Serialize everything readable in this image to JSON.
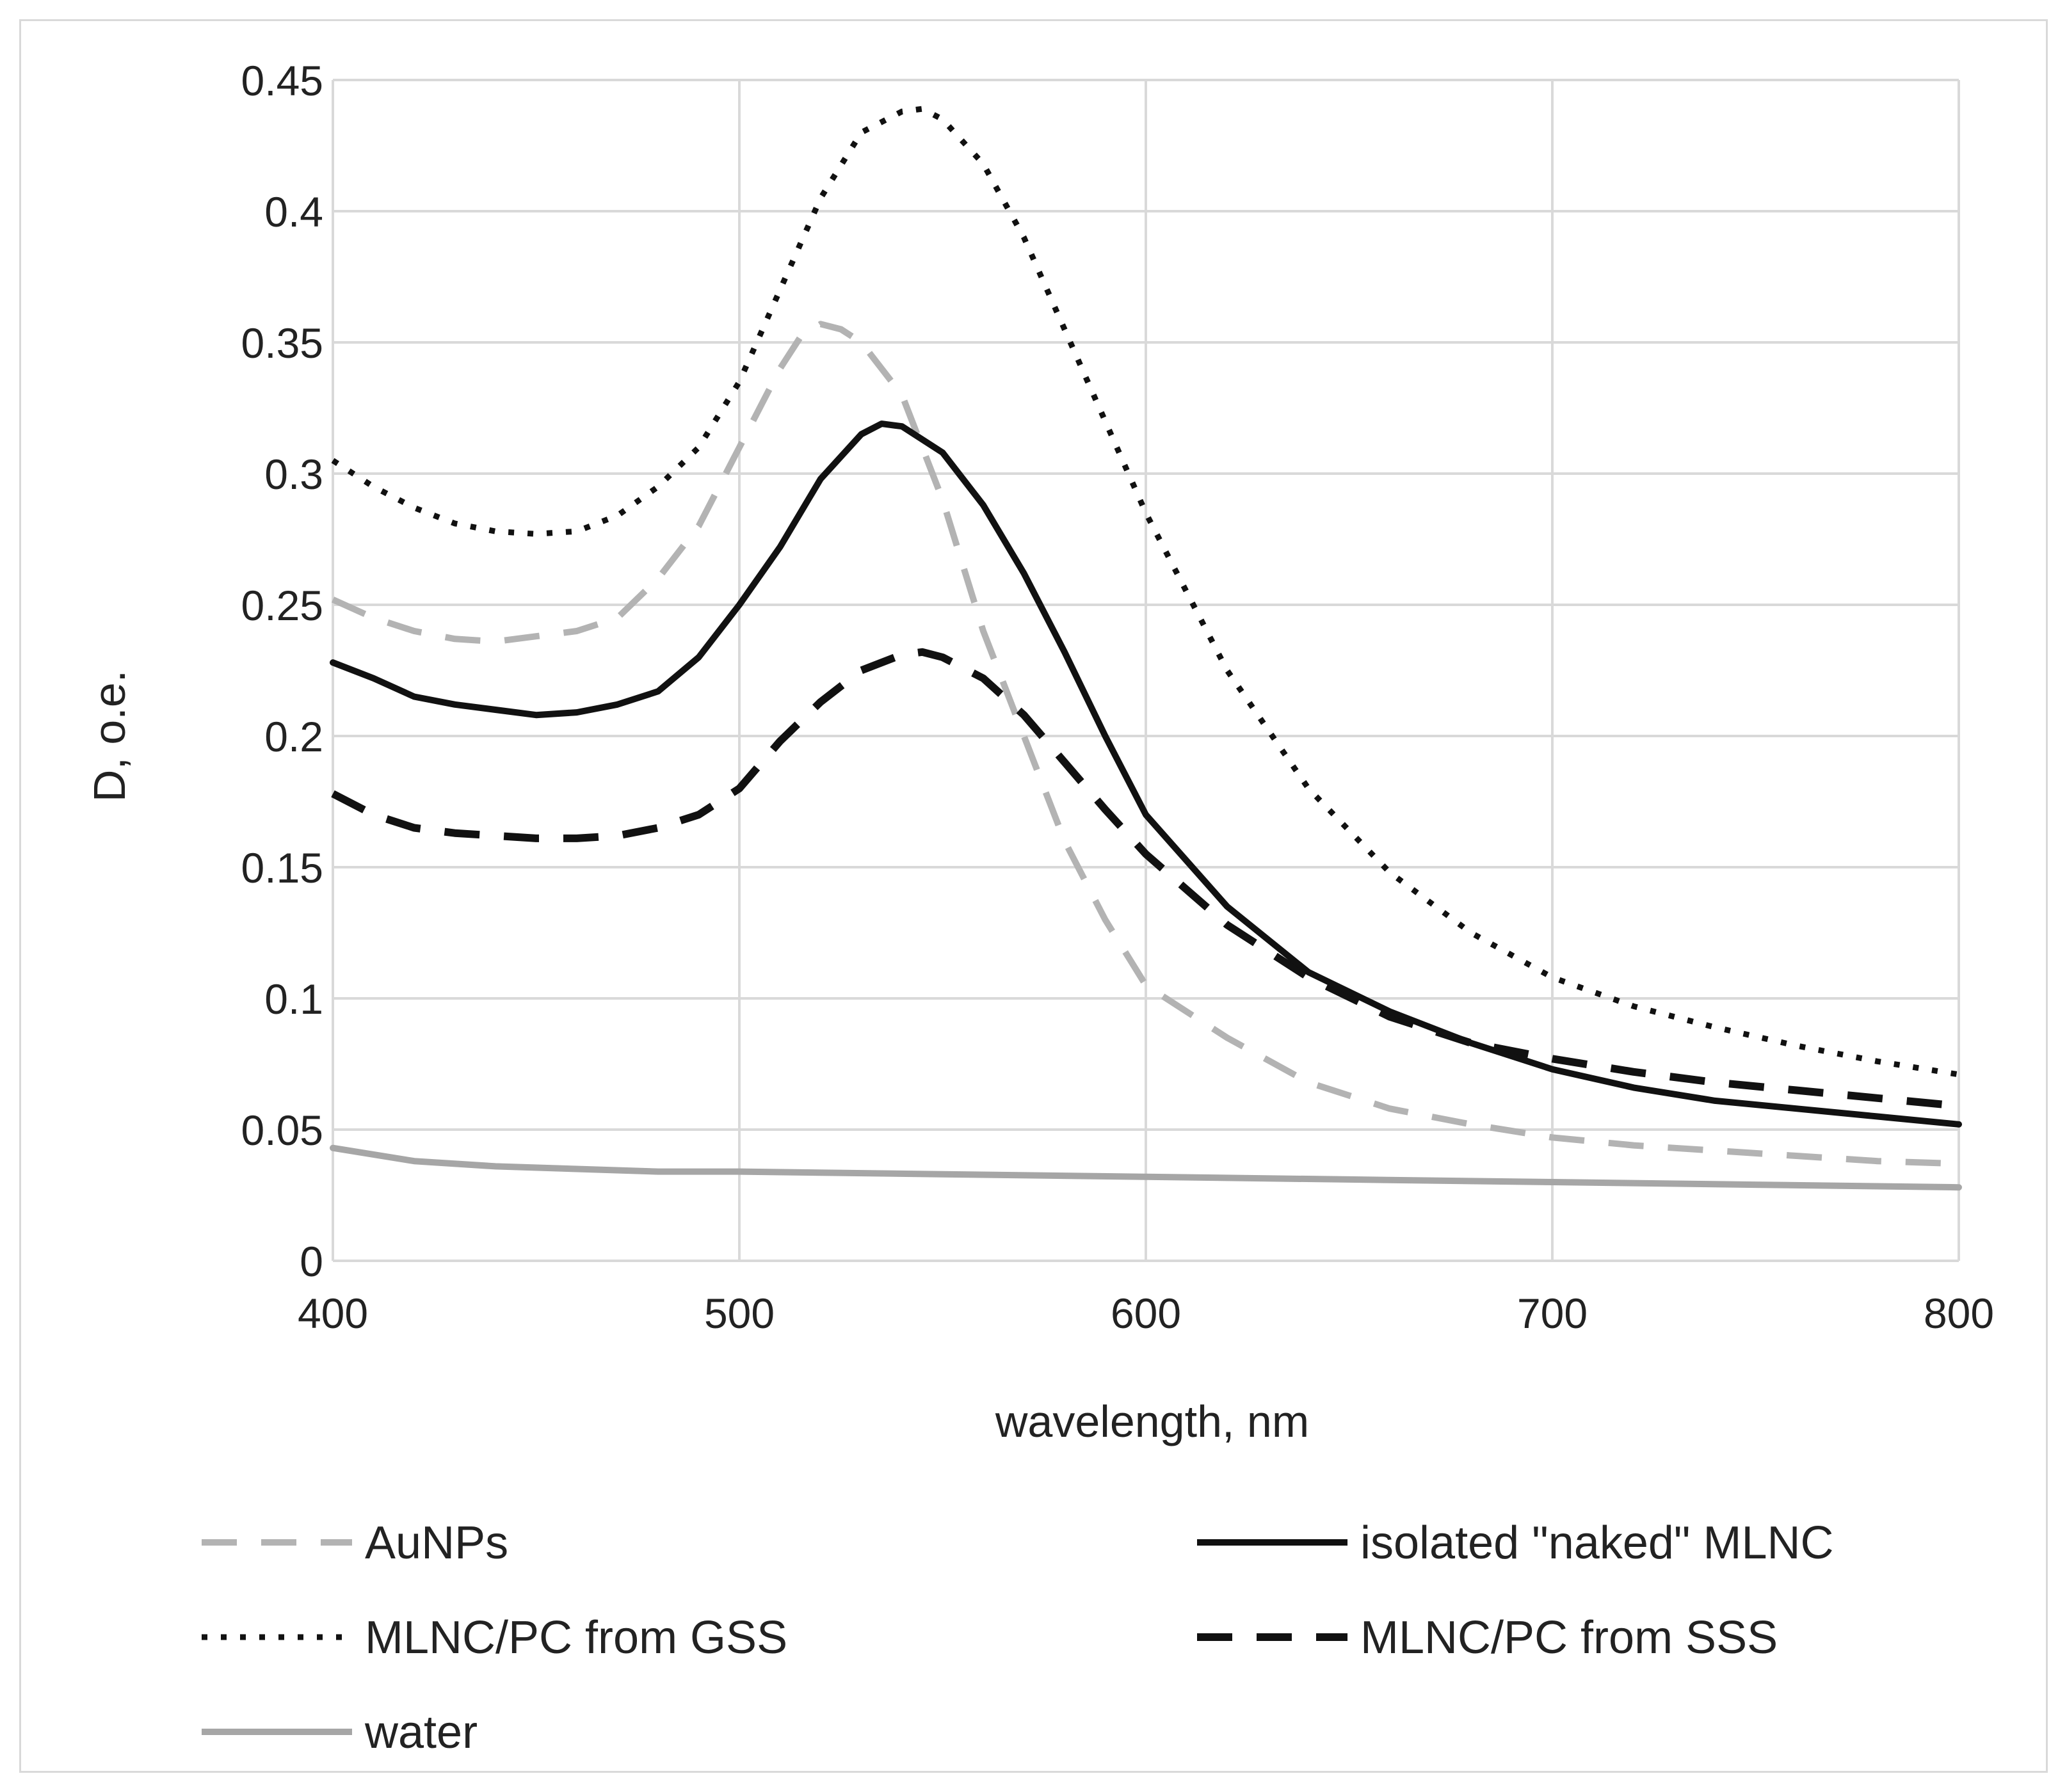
{
  "chart_data": {
    "type": "line",
    "title": "",
    "xlabel": "wavelength, nm",
    "ylabel": "D, o.e.",
    "xlim": [
      400,
      800
    ],
    "ylim": [
      0,
      0.45
    ],
    "xticks": [
      400,
      500,
      600,
      700,
      800
    ],
    "xtick_labels": [
      "400",
      "500",
      "600",
      "700",
      "800"
    ],
    "yticks": [
      0,
      0.05,
      0.1,
      0.15,
      0.2,
      0.25,
      0.3,
      0.35,
      0.4,
      0.45
    ],
    "ytick_labels": [
      "0",
      "0.05",
      "0.1",
      "0.15",
      "0.2",
      "0.25",
      "0.3",
      "0.35",
      "0.4",
      "0.45"
    ],
    "grid": true,
    "legend_position": "bottom",
    "series": [
      {
        "name": "AuNPs",
        "style": "gray-dashed",
        "color": "#b3b3b3",
        "x": [
          400,
          410,
          420,
          430,
          440,
          450,
          460,
          470,
          480,
          490,
          500,
          510,
          515,
          520,
          525,
          530,
          540,
          550,
          560,
          570,
          580,
          590,
          600,
          620,
          640,
          660,
          680,
          700,
          720,
          740,
          760,
          780,
          800
        ],
        "y": [
          0.252,
          0.245,
          0.24,
          0.237,
          0.236,
          0.238,
          0.24,
          0.245,
          0.26,
          0.28,
          0.31,
          0.34,
          0.352,
          0.357,
          0.355,
          0.35,
          0.33,
          0.29,
          0.24,
          0.2,
          0.16,
          0.13,
          0.105,
          0.085,
          0.068,
          0.058,
          0.052,
          0.047,
          0.044,
          0.042,
          0.04,
          0.038,
          0.037
        ]
      },
      {
        "name": "isolated \"naked\" MLNC",
        "style": "black-solid",
        "color": "#111111",
        "x": [
          400,
          410,
          420,
          430,
          440,
          450,
          460,
          470,
          480,
          490,
          500,
          510,
          520,
          530,
          535,
          540,
          550,
          560,
          570,
          580,
          590,
          600,
          620,
          640,
          660,
          680,
          700,
          720,
          740,
          760,
          780,
          800
        ],
        "y": [
          0.228,
          0.222,
          0.215,
          0.212,
          0.21,
          0.208,
          0.209,
          0.212,
          0.217,
          0.23,
          0.25,
          0.272,
          0.298,
          0.315,
          0.319,
          0.318,
          0.308,
          0.288,
          0.262,
          0.232,
          0.2,
          0.17,
          0.135,
          0.11,
          0.095,
          0.083,
          0.073,
          0.066,
          0.061,
          0.058,
          0.055,
          0.052
        ]
      },
      {
        "name": "MLNC/PC from GSS",
        "style": "black-dotted",
        "color": "#111111",
        "x": [
          400,
          410,
          420,
          430,
          440,
          450,
          460,
          470,
          480,
          490,
          500,
          510,
          520,
          530,
          540,
          545,
          550,
          560,
          570,
          580,
          590,
          600,
          620,
          640,
          660,
          680,
          700,
          720,
          740,
          760,
          780,
          800
        ],
        "y": [
          0.305,
          0.295,
          0.287,
          0.281,
          0.278,
          0.277,
          0.278,
          0.284,
          0.295,
          0.31,
          0.335,
          0.37,
          0.405,
          0.43,
          0.438,
          0.439,
          0.435,
          0.418,
          0.39,
          0.355,
          0.32,
          0.285,
          0.225,
          0.18,
          0.148,
          0.125,
          0.108,
          0.097,
          0.089,
          0.082,
          0.076,
          0.071
        ]
      },
      {
        "name": "MLNC/PC from SSS",
        "style": "black-dashed",
        "color": "#111111",
        "x": [
          400,
          410,
          420,
          430,
          440,
          450,
          460,
          470,
          480,
          490,
          500,
          510,
          520,
          530,
          540,
          545,
          550,
          560,
          570,
          580,
          590,
          600,
          620,
          640,
          660,
          680,
          700,
          720,
          740,
          760,
          780,
          800
        ],
        "y": [
          0.178,
          0.17,
          0.165,
          0.163,
          0.162,
          0.161,
          0.161,
          0.162,
          0.165,
          0.17,
          0.18,
          0.198,
          0.213,
          0.225,
          0.231,
          0.232,
          0.23,
          0.222,
          0.208,
          0.19,
          0.172,
          0.155,
          0.128,
          0.108,
          0.093,
          0.083,
          0.077,
          0.072,
          0.068,
          0.065,
          0.062,
          0.059
        ]
      },
      {
        "name": "water",
        "style": "gray-solid",
        "color": "#a6a6a6",
        "x": [
          400,
          420,
          440,
          460,
          480,
          500,
          550,
          600,
          650,
          700,
          750,
          800
        ],
        "y": [
          0.043,
          0.038,
          0.036,
          0.035,
          0.034,
          0.034,
          0.033,
          0.032,
          0.031,
          0.03,
          0.029,
          0.028
        ]
      }
    ]
  }
}
